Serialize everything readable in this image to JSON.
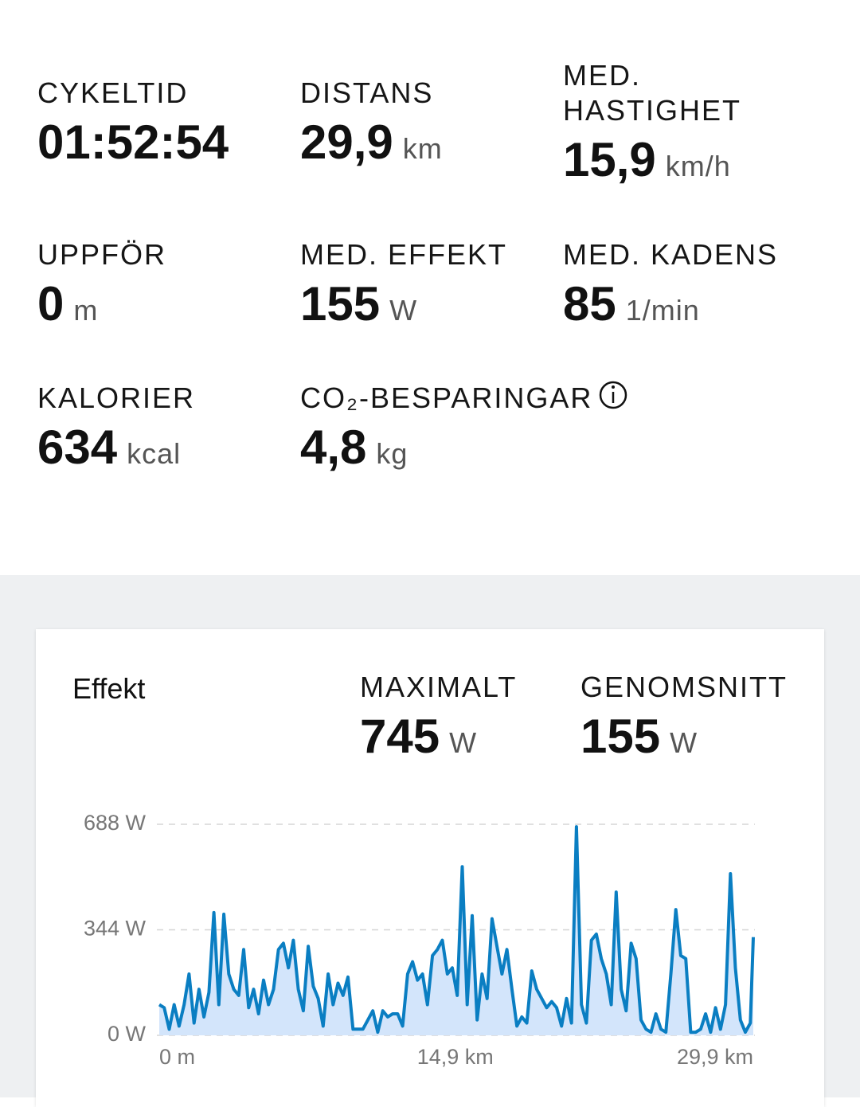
{
  "stats": [
    {
      "label": "CYKELTID",
      "value": "01:52:54"
    },
    {
      "label": "DISTANS",
      "value": "29,9",
      "unit": "km"
    },
    {
      "label": "MED. HASTIGHET",
      "value": "15,9",
      "unit": "km/h"
    },
    {
      "label": "UPPFÖR",
      "value": 0,
      "unit": "m"
    },
    {
      "label": "MED. EFFEKT",
      "value": 155,
      "unit": "W"
    },
    {
      "label": "MED. KADENS",
      "value": 85,
      "unit": "1/min"
    },
    {
      "label": "KALORIER",
      "value": 634,
      "unit": "kcal"
    },
    {
      "label": "CO₂-BESPARINGAR",
      "value": "4,8",
      "unit": "kg"
    }
  ],
  "chart_data": {
    "type": "line",
    "title": "Effekt",
    "summary": [
      {
        "label": "MAXIMALT",
        "value": 745,
        "unit": "W"
      },
      {
        "label": "GENOMSNITT",
        "value": 155,
        "unit": "W"
      }
    ],
    "x": [
      0,
      0.25,
      0.5,
      0.75,
      1,
      1.25,
      1.5,
      1.75,
      2,
      2.25,
      2.5,
      2.75,
      3,
      3.25,
      3.5,
      3.75,
      4,
      4.25,
      4.5,
      4.75,
      5,
      5.25,
      5.5,
      5.75,
      6,
      6.25,
      6.5,
      6.75,
      7,
      7.25,
      7.5,
      7.75,
      8,
      8.25,
      8.5,
      8.75,
      9,
      9.25,
      9.5,
      9.75,
      10,
      10.25,
      10.5,
      10.75,
      11,
      11.25,
      11.5,
      11.75,
      12,
      12.25,
      12.5,
      12.75,
      13,
      13.25,
      13.5,
      13.75,
      14,
      14.25,
      14.5,
      14.75,
      15,
      15.25,
      15.5,
      15.75,
      16,
      16.25,
      16.5,
      16.75,
      17,
      17.25,
      17.5,
      17.75,
      18,
      18.25,
      18.5,
      18.75,
      19,
      19.25,
      19.5,
      19.75,
      20,
      20.25,
      20.5,
      20.75,
      21,
      21.25,
      21.5,
      21.75,
      22,
      22.25,
      22.5,
      22.75,
      23,
      23.25,
      23.5,
      23.75,
      24,
      24.25,
      24.5,
      24.75,
      25,
      25.25,
      25.5,
      25.75,
      26,
      26.25,
      26.5,
      26.75,
      27,
      27.25,
      27.5,
      27.75,
      28,
      28.25,
      28.5,
      28.75,
      29,
      29.25,
      29.5,
      29.75,
      29.9
    ],
    "series": [
      {
        "name": "Effekt",
        "color": "#0a7ec2",
        "fill": "#d3e5fb",
        "values": [
          100,
          90,
          20,
          100,
          30,
          100,
          200,
          40,
          150,
          60,
          140,
          400,
          100,
          395,
          200,
          150,
          130,
          280,
          90,
          150,
          70,
          180,
          100,
          150,
          280,
          300,
          220,
          310,
          150,
          80,
          290,
          160,
          120,
          30,
          200,
          100,
          170,
          130,
          190,
          20,
          20,
          20,
          50,
          80,
          10,
          80,
          60,
          70,
          70,
          30,
          200,
          240,
          180,
          200,
          100,
          260,
          280,
          310,
          200,
          220,
          130,
          550,
          100,
          390,
          50,
          200,
          120,
          380,
          290,
          200,
          280,
          150,
          30,
          60,
          40,
          210,
          150,
          120,
          90,
          110,
          90,
          30,
          120,
          40,
          680,
          100,
          40,
          310,
          330,
          250,
          200,
          100,
          467,
          150,
          80,
          300,
          250,
          50,
          20,
          10,
          70,
          20,
          10,
          200,
          410,
          260,
          250,
          10,
          10,
          20,
          70,
          10,
          90,
          20,
          100,
          527,
          220,
          50,
          10,
          40,
          320
        ]
      }
    ],
    "xlim": [
      0,
      29.9
    ],
    "xticks": [
      {
        "value": 0,
        "label": "0 m"
      },
      {
        "value": 14.9,
        "label": "14,9 km"
      },
      {
        "value": 29.9,
        "label": "29,9 km"
      }
    ],
    "ylim": [
      0,
      688
    ],
    "yticks": [
      {
        "value": 0,
        "label": "0 W"
      },
      {
        "value": 344,
        "label": "344 W"
      },
      {
        "value": 688,
        "label": "688 W"
      }
    ],
    "grid": true
  }
}
